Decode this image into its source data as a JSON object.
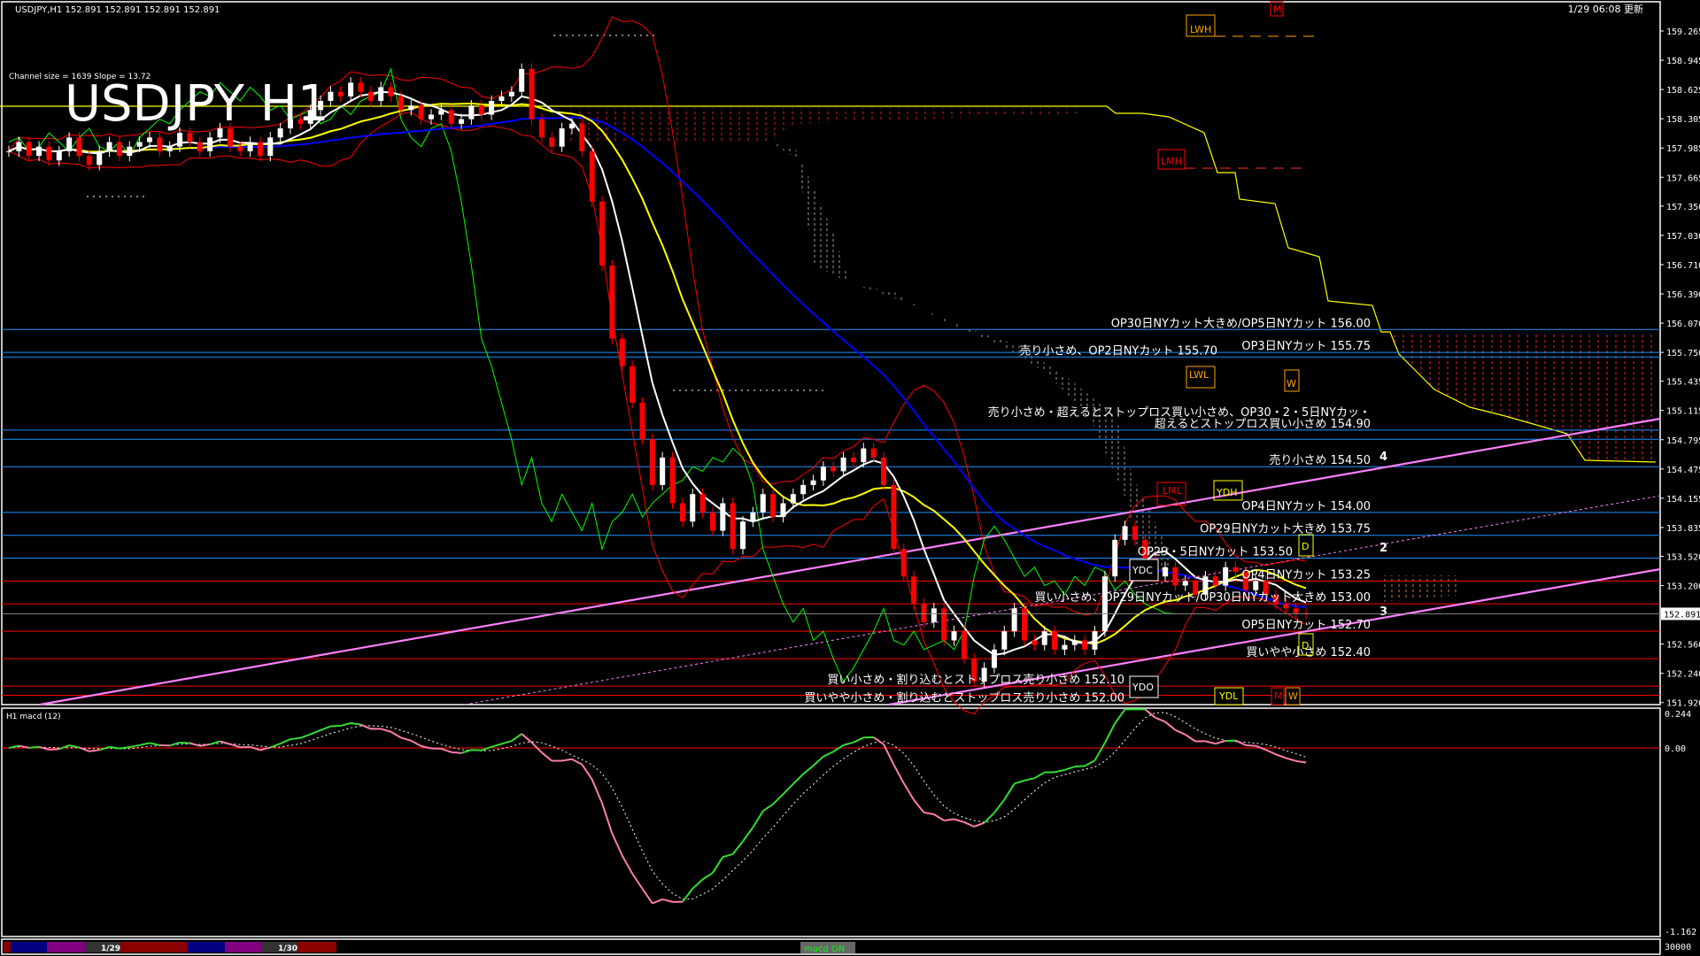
{
  "header": {
    "symbol_info": "USDJPY,H1  152.891 152.891 152.891 152.891",
    "channel_info": "Channel size = 1639 Slope = 13.72",
    "big_title": "USDJPY H1",
    "updated": "1/29 06:08 更新"
  },
  "price_axis": {
    "ticks": [
      "159.265",
      "158.945",
      "158.625",
      "158.305",
      "157.985",
      "157.665",
      "157.350",
      "157.030",
      "156.710",
      "156.390",
      "156.070",
      "155.750",
      "155.435",
      "155.115",
      "154.795",
      "154.475",
      "154.155",
      "153.835",
      "153.520",
      "153.200",
      "152.560",
      "152.240",
      "151.920"
    ],
    "current_price": "152.891"
  },
  "macd_pane": {
    "title": "H1  macd (12)",
    "ticks": [
      "0.244",
      "0.00",
      "-1.162"
    ],
    "volume_tick": "30000"
  },
  "levels": [
    {
      "price": 156.0,
      "color": "#1e90ff",
      "text": "OP30日NYカット大きめ/OP5日NYカット 156.00"
    },
    {
      "price": 155.75,
      "color": "#1e90ff",
      "text": "OP3日NYカット 155.75"
    },
    {
      "price": 155.7,
      "color": "#1e90ff",
      "text": "売り小さめ、OP2日NYカット 155.70"
    },
    {
      "price": 154.9,
      "color": "#1e90ff",
      "text": "超えるとストップロス買い小さめ 154.90",
      "text2": "売り小さめ・超えるとストップロス買い小さめ、OP30・2・5日NYカッ・"
    },
    {
      "price": 154.8,
      "color": "#1e90ff",
      "text": ""
    },
    {
      "price": 154.5,
      "color": "#1e90ff",
      "text": "売り小さめ 154.50"
    },
    {
      "price": 154.0,
      "color": "#1e90ff",
      "text": "OP4日NYカット 154.00"
    },
    {
      "price": 153.75,
      "color": "#1e90ff",
      "text": "OP29日NYカット大きめ 153.75"
    },
    {
      "price": 153.5,
      "color": "#1e90ff",
      "text": "OP29・5日NYカット 153.50"
    },
    {
      "price": 153.25,
      "color": "#ff0000",
      "text": "OP4日NYカット 153.25"
    },
    {
      "price": 153.0,
      "color": "#ff0000",
      "text": "買い小さめ、OP29日NYカット/OP30日NYカット大きめ 153.00"
    },
    {
      "price": 152.7,
      "color": "#ff0000",
      "text": "OP5日NYカット 152.70"
    },
    {
      "price": 152.4,
      "color": "#ff0000",
      "text": "買いやや小さめ 152.40"
    },
    {
      "price": 152.1,
      "color": "#ff0000",
      "text": "買い小さめ・割り込むとストップロス売り小さめ 152.10"
    },
    {
      "price": 152.0,
      "color": "#ff0000",
      "text": "買いやや小さめ・割り込むとストップロス売り小さめ 152.00"
    }
  ],
  "markers": {
    "lwh": "LWH",
    "m_top": "M",
    "lmh": "LMH",
    "lwl": "LWL",
    "w_mid": "W",
    "lml": "LML",
    "ydh": "YDH",
    "d1": "D",
    "ydc": "YDC",
    "d2": "D",
    "ydo": "YDO",
    "ydl": "YDL",
    "m_bot": "M",
    "w_bot": "W",
    "n4": "4",
    "n2": "2",
    "n3": "3"
  },
  "bottom_bar": {
    "date1": "1/29",
    "date2": "1/30",
    "macd_toggle": "macd ON"
  },
  "colors": {
    "bull": "#ffffff",
    "bear": "#ff0000",
    "ma_fast": "#ffffff",
    "ma_mid": "#ffff00",
    "ma_slow": "#0000ff",
    "bands": "#ff0000",
    "lagging": "#00ff00",
    "trend": "#ff80ff",
    "macd_up": "#33dd33",
    "macd_down": "#ff7faa"
  },
  "chart_data": {
    "type": "candlestick",
    "symbol": "USDJPY",
    "timeframe": "H1",
    "ylim": [
      151.92,
      159.265
    ],
    "x_labels": [
      "1/29",
      "1/30"
    ],
    "close": [
      157.95,
      158.05,
      157.9,
      158.0,
      157.85,
      157.95,
      158.1,
      157.9,
      157.8,
      157.95,
      158.05,
      157.9,
      158.0,
      158.05,
      158.1,
      157.95,
      158.0,
      158.15,
      158.05,
      157.95,
      158.1,
      158.2,
      158.0,
      157.95,
      158.05,
      157.9,
      158.1,
      158.2,
      158.3,
      158.25,
      158.4,
      158.5,
      158.6,
      158.55,
      158.7,
      158.6,
      158.5,
      158.65,
      158.55,
      158.4,
      158.45,
      158.3,
      158.35,
      158.4,
      158.25,
      158.3,
      158.45,
      158.35,
      158.5,
      158.55,
      158.6,
      158.85,
      158.3,
      158.1,
      158.0,
      158.2,
      158.25,
      157.95,
      157.4,
      156.7,
      155.9,
      155.6,
      155.2,
      154.8,
      154.3,
      154.6,
      154.1,
      153.9,
      154.2,
      154.0,
      153.8,
      154.1,
      153.6,
      153.9,
      154.0,
      154.2,
      153.95,
      154.1,
      154.2,
      154.3,
      154.35,
      154.5,
      154.45,
      154.6,
      154.55,
      154.7,
      154.6,
      154.3,
      153.6,
      153.3,
      153.0,
      152.8,
      152.95,
      152.6,
      152.7,
      152.4,
      152.15,
      152.3,
      152.5,
      152.7,
      152.95,
      152.6,
      152.55,
      152.7,
      152.5,
      152.55,
      152.6,
      152.5,
      152.7,
      153.3,
      153.7,
      153.85,
      153.7,
      153.5,
      153.3,
      153.4,
      153.2,
      153.25,
      153.1,
      153.3,
      153.2,
      153.4,
      153.35,
      153.15,
      153.25,
      153.1,
      153.0,
      152.95,
      152.9,
      152.891
    ],
    "macd_ylim": [
      -1.162,
      0.244
    ]
  }
}
